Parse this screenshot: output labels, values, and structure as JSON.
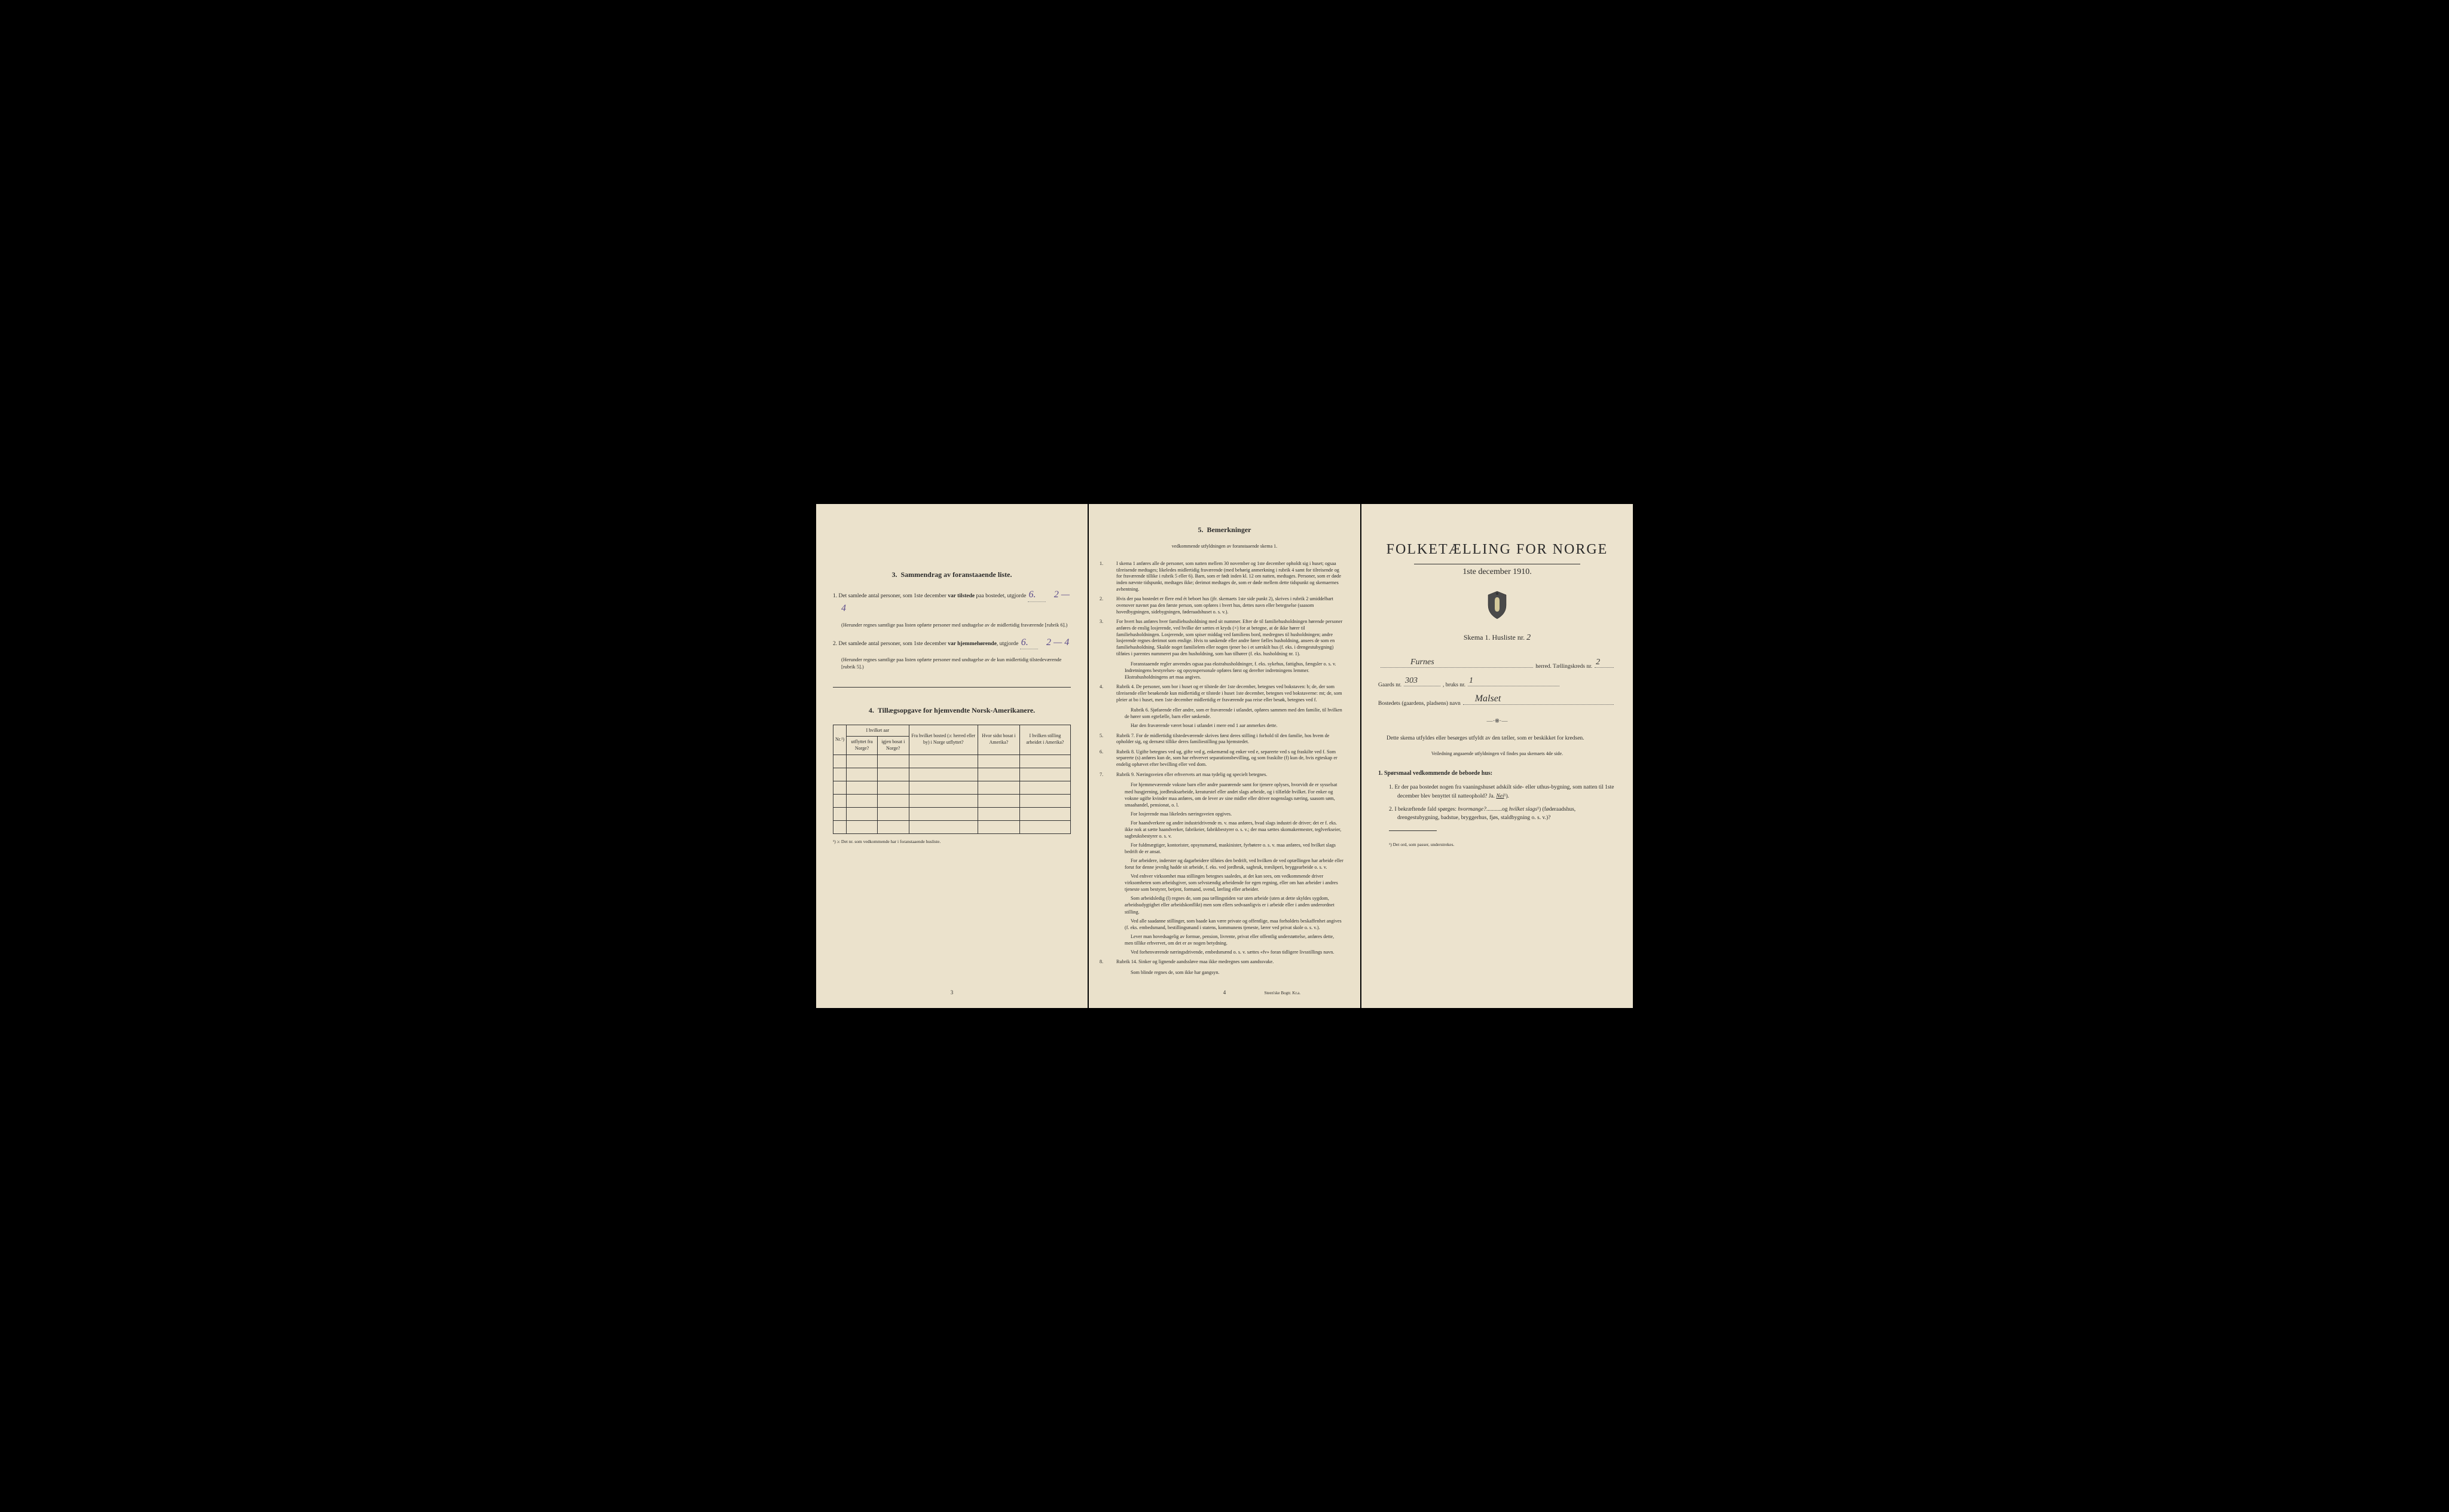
{
  "left": {
    "section3": {
      "num": "3.",
      "title": "Sammendrag av foranstaaende liste.",
      "item1_pre": "1.  Det samlede antal personer, som 1ste december ",
      "item1_bold": "var tilstede",
      "item1_post": " paa bostedet, utgjorde",
      "item1_val": "6.",
      "item1_val2": "2 — 4",
      "item1_note": "(Herunder regnes samtlige paa listen opførte personer med undtagelse av de midlertidig fraværende [rubrik 6].)",
      "item2_pre": "2.  Det samlede antal personer, som 1ste december ",
      "item2_bold": "var hjemmehørende",
      "item2_post": ", utgjorde",
      "item2_val": "6.",
      "item2_val2": "2 — 4",
      "item2_note": "(Herunder regnes samtlige paa listen opførte personer med undtagelse av de kun midlertidig tilstedeværende [rubrik 5].)"
    },
    "section4": {
      "num": "4.",
      "title": "Tillægsopgave for hjemvendte Norsk-Amerikanere.",
      "headers": {
        "nr": "Nr.¹)",
        "h1a": "I hvilket aar",
        "h1b": "utflyttet fra Norge?",
        "h1c": "igjen bosat i Norge?",
        "h2": "Fra hvilket bosted (ɔ: herred eller by) i Norge utflyttet?",
        "h3": "Hvor sidst bosat i Amerika?",
        "h4": "I hvilken stilling arbeidet i Amerika?"
      },
      "footnote": "¹) ɔ: Det nr. som vedkommende har i foranstaaende husliste."
    },
    "page_num": "3"
  },
  "middle": {
    "title_num": "5.",
    "title": "Bemerkninger",
    "subtitle": "vedkommende utfyldningen av foranstaaende skema 1.",
    "items": [
      {
        "num": "1.",
        "text": "I skema 1 anføres alle de personer, som natten mellem 30 november og 1ste december opholdt sig i huset; ogsaa tilreisende medtages; likeledes midlertidig fraværende (med behørig anmerkning i rubrik 4 samt for tilreisende og for fraværende tillike i rubrik 5 eller 6). Barn, som er født inden kl. 12 om natten, medtages. Personer, som er døde inden nævnte tidspunkt, medtages ikke; derimot medtages de, som er døde mellem dette tidspunkt og skemaernes avhentning."
      },
      {
        "num": "2.",
        "text": "Hvis der paa bostedet er flere end ét beboet hus (jfr. skemaets 1ste side punkt 2), skrives i rubrik 2 umiddelbart ovenover navnet paa den første person, som opføres i hvert hus, dettes navn eller betegnelse (saasom hovedbygningen, sidebygningen, føderaadshuset o. s. v.)."
      },
      {
        "num": "3.",
        "text": "For hvert hus anføres hver familiehusholdning med sit nummer. Efter de til familiehusholdningen hørende personer anføres de enslig losjerende, ved hvilke der sættes et kryds (×) for at betegne, at de ikke hører til familiehusholdningen. Losjerende, som spiser middag ved familiens bord, medregnes til husholdningen; andre losjerende regnes derimot som enslige. Hvis to søskende eller andre fører fælles husholdning, ansees de som en familiehusholdning. Skulde noget familielem eller nogen tjener bo i et særskilt hus (f. eks. i drengestubygning) tilføies i parentes nummeret paa den husholdning, som han tilhører (f. eks. husholdning nr. 1).",
        "para2": "Foranstaaende regler anvendes ogsaa paa ekstrahusholdninger, f. eks. sykehus, fattighus, fængsler o. s. v. Indretningens bestyrelses- og opsynspersonale opføres først og derefter indretningens lemmer. Ekstrahusholdningens art maa angives."
      },
      {
        "num": "4.",
        "text": "Rubrik 4. De personer, som bor i huset og er tilstede der 1ste december, betegnes ved bokstaven: b; de, der som tilreisende eller besøkende kun midlertidig er tilstede i huset 1ste december, betegnes ved bokstaverne: mt; de, som pleier at bo i huset, men 1ste december midlertidig er fraværende paa reise eller besøk, betegnes ved f.",
        "para2": "Rubrik 6. Sjøfarende eller andre, som er fraværende i utlandet, opføres sammen med den familie, til hvilken de hører som egtefælle, barn eller søskende.",
        "para3": "Har den fraværende været bosat i utlandet i mere end 1 aar anmerkes dette."
      },
      {
        "num": "5.",
        "text": "Rubrik 7. For de midlertidig tilstedeværende skrives først deres stilling i forhold til den familie, hos hvem de opholder sig, og dernæst tillike deres familiestilling paa hjemstedet."
      },
      {
        "num": "6.",
        "text": "Rubrik 8. Ugifte betegnes ved ug, gifte ved g, enkemænd og enker ved e, separerte ved s og fraskilte ved f. Som separerte (s) anføres kun de, som har erhvervet separationsbevilling, og som fraskilte (f) kun de, hvis egteskap er endelig ophævet efter bevilling eller ved dom."
      },
      {
        "num": "7.",
        "text": "Rubrik 9. Næringsveien eller erhvervets art maa tydelig og specielt betegnes.",
        "para2": "For hjemmeværende voksne barn eller andre paarørende samt for tjenere oplyses, hvorvidt de er sysselsat med husgjerning, jordbruksarbeide, kreaturstel eller andet slags arbeide, og i tilfælde hvilket. For enker og voksne ugifte kvinder maa anføres, om de lever av sine midler eller driver nogenslags næring, saasom søm, smaahandel, pensionat, o. l.",
        "para3": "For losjerende maa likeledes næringsveien opgives.",
        "para4": "For haandverkere og andre industridrivende m. v. maa anføres, hvad slags industri de driver; det er f. eks. ikke nok at sætte haandverker, fabrikeier, fabrikbestyrer o. s. v.; der maa sættes skomakermester, teglverkseier, sagbruksbestyrer o. s. v.",
        "para5": "For fuldmægtiger, kontorister, opsynsmænd, maskinister, fyrbøtere o. s. v. maa anføres, ved hvilket slags bedrift de er ansat.",
        "para6": "For arbeidere, inderster og dagarbeidere tilføies den bedrift, ved hvilken de ved optællingen har arbeide eller forut for denne jevnlig hadde sit arbeide, f. eks. ved jordbruk, sagbruk, træsliperi, bryggearbeide o. s. v.",
        "para7": "Ved enhver virksomhet maa stillingen betegnes saaledes, at det kan sees, om vedkommende driver virksomheten som arbeidsgiver, som selvstændig arbeidende for egen regning, eller om han arbeider i andres tjeneste som bestyrer, betjent, formand, svend, lærling eller arbeider.",
        "para8": "Som arbeidsledig (l) regnes de, som paa tællingstiden var uten arbeide (uten at dette skyldes sygdom, arbeidsudygtighet eller arbeidskonflikt) men som ellers sedvaanligvis er i arbeide eller i anden underordnet stilling.",
        "para9": "Ved alle saadanne stillinger, som baade kan være private og offentlige, maa forholdets beskaffenhet angives (f. eks. embedsmand, bestillingsmand i statens, kommunens tjeneste, lærer ved privat skole o. s. v.).",
        "para10": "Lever man hovedsagelig av formue, pension, livrente, privat eller offentlig understøttelse, anføres dette, men tillike erhvervet, om det er av nogen betydning.",
        "para11": "Ved forhenværende næringsdrivende, embedsmænd o. s. v. sættes «fv» foran tidligere livsstillings navn."
      },
      {
        "num": "8.",
        "text": "Rubrik 14. Sinker og lignende aandssløve maa ikke medregnes som aandssvake.",
        "para2": "Som blinde regnes de, som ikke har gangsyn."
      }
    ],
    "page_num": "4",
    "printer": "Steen'ske Bogtr. Kr.a."
  },
  "right": {
    "main_title": "FOLKETÆLLING FOR NORGE",
    "date": "1ste december 1910.",
    "skema": "Skema 1.  Husliste nr.",
    "skema_val": "2",
    "herred_val": "Furnes",
    "herred_label": "herred.  Tællingskreds nr.",
    "kreds_val": "2",
    "gaards_label": "Gaards nr.",
    "gaards_val": "303",
    "bruks_label": ", bruks nr.",
    "bruks_val": "1",
    "bosted_label": "Bostedets (gaardens, pladsens) navn",
    "bosted_val": "Malset",
    "instruct": "Dette skema utfyldes eller besørges utfyldt av den tæller, som er beskikket for kredsen.",
    "instruct_small": "Veiledning angaaende utfyldningen vil findes paa skemaets 4de side.",
    "q_title": "1.  Spørsmaal vedkommende de beboede hus:",
    "q1": "1.  Er der paa bostedet nogen fra vaaningshuset adskilt side- eller uthus-bygning, som natten til 1ste december blev benyttet til natteophold?   Ja.   ",
    "q1_nei": "Nei",
    "q1_sup": "¹).",
    "q2_pre": "2.  I bekræftende fald spørges: ",
    "q2_it1": "hvormange?",
    "q2_mid": "...........og ",
    "q2_it2": "hvilket slags",
    "q2_sup": "¹)",
    "q2_post": " (føderaadshus, drengestubygning, badstue, bryggerhus, fjøs, staldbygning o. s. v.)?",
    "footnote": "¹) Det ord, som passer, understrekes."
  }
}
